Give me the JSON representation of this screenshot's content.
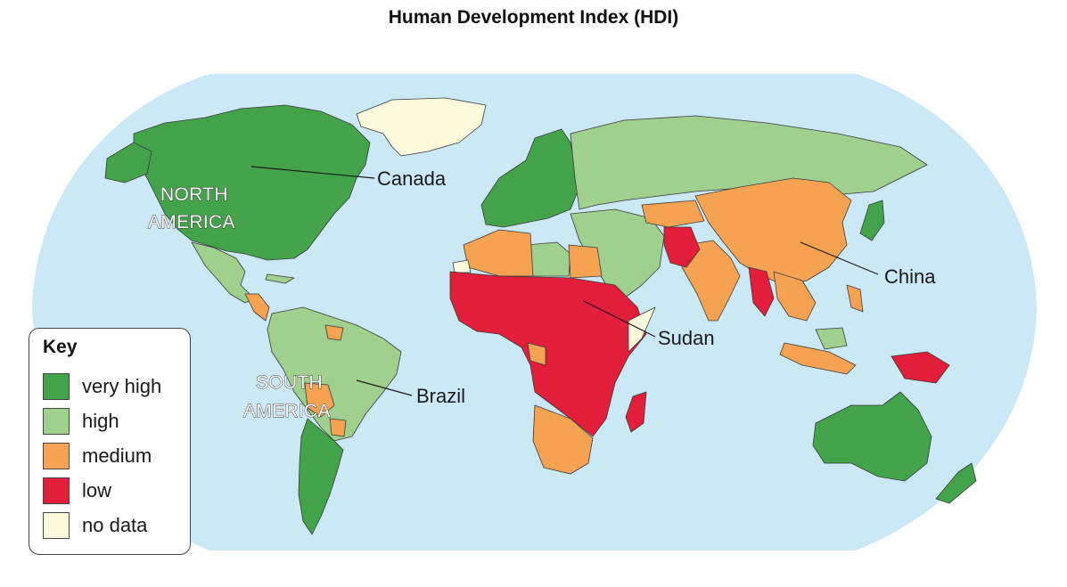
{
  "title": "Human Development Index (HDI)",
  "colors": {
    "ocean": "#cbe8f6",
    "very_high": "#43a34a",
    "high": "#9fd08d",
    "medium": "#f6a253",
    "low": "#e31e3a",
    "no_data": "#fdf9dc"
  },
  "labels": {
    "canada": "Canada",
    "china": "China",
    "sudan": "Sudan",
    "brazil": "Brazil",
    "north_america_1": "NORTH",
    "north_america_2": "AMERICA",
    "south_america_1": "SOUTH",
    "south_america_2": "AMERICA"
  },
  "legend": {
    "title": "Key",
    "items": [
      {
        "label": "very high",
        "color": "#43a34a"
      },
      {
        "label": "high",
        "color": "#9fd08d"
      },
      {
        "label": "medium",
        "color": "#f6a253"
      },
      {
        "label": "low",
        "color": "#e31e3a"
      },
      {
        "label": "no data",
        "color": "#fdf9dc"
      }
    ]
  }
}
